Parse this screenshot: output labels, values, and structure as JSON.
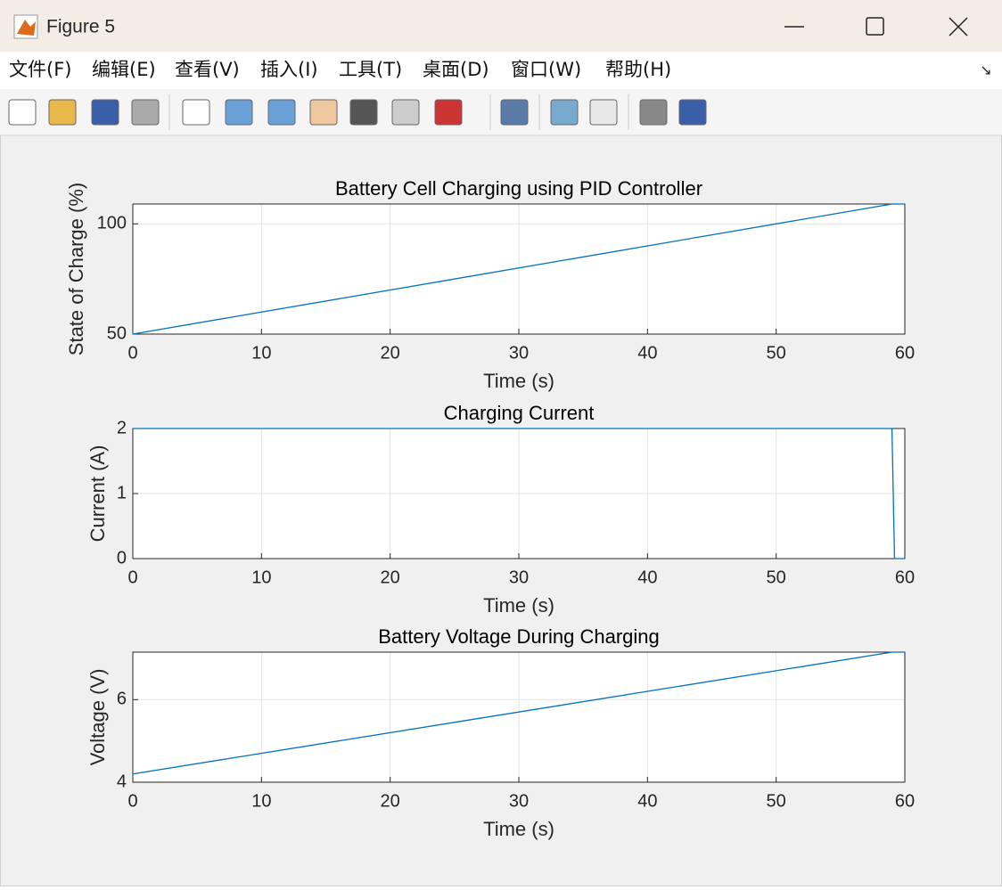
{
  "window": {
    "title": "Figure 5",
    "menu": [
      "文件(F)",
      "编辑(E)",
      "查看(V)",
      "插入(I)",
      "工具(T)",
      "桌面(D)",
      "窗口(W)",
      "帮助(H)"
    ]
  },
  "chart_data": [
    {
      "type": "line",
      "title": "Battery Cell Charging using PID Controller",
      "xlabel": "Time (s)",
      "ylabel": "State of Charge (%)",
      "x": [
        0,
        59,
        60
      ],
      "values": [
        50,
        109,
        109
      ],
      "color": "#0072bd",
      "xlim": [
        0,
        60
      ],
      "xticks": [
        0,
        10,
        20,
        30,
        40,
        50,
        60
      ],
      "ylim": [
        50,
        109
      ],
      "yticks": [
        50,
        100
      ],
      "grid": true
    },
    {
      "type": "line",
      "title": "Charging Current",
      "xlabel": "Time (s)",
      "ylabel": "Current (A)",
      "x": [
        0,
        59,
        59.2,
        60
      ],
      "values": [
        2,
        2,
        0,
        0
      ],
      "color": "#0072bd",
      "xlim": [
        0,
        60
      ],
      "xticks": [
        0,
        10,
        20,
        30,
        40,
        50,
        60
      ],
      "ylim": [
        0,
        2
      ],
      "yticks": [
        0,
        1,
        2
      ],
      "grid": true
    },
    {
      "type": "line",
      "title": "Battery Voltage During Charging",
      "xlabel": "Time (s)",
      "ylabel": "Voltage (V)",
      "x": [
        0,
        59,
        60
      ],
      "values": [
        4.2,
        7.15,
        7.15
      ],
      "color": "#0072bd",
      "xlim": [
        0,
        60
      ],
      "xticks": [
        0,
        10,
        20,
        30,
        40,
        50,
        60
      ],
      "ylim": [
        4,
        7.15
      ],
      "yticks": [
        4,
        6
      ],
      "grid": true
    }
  ]
}
